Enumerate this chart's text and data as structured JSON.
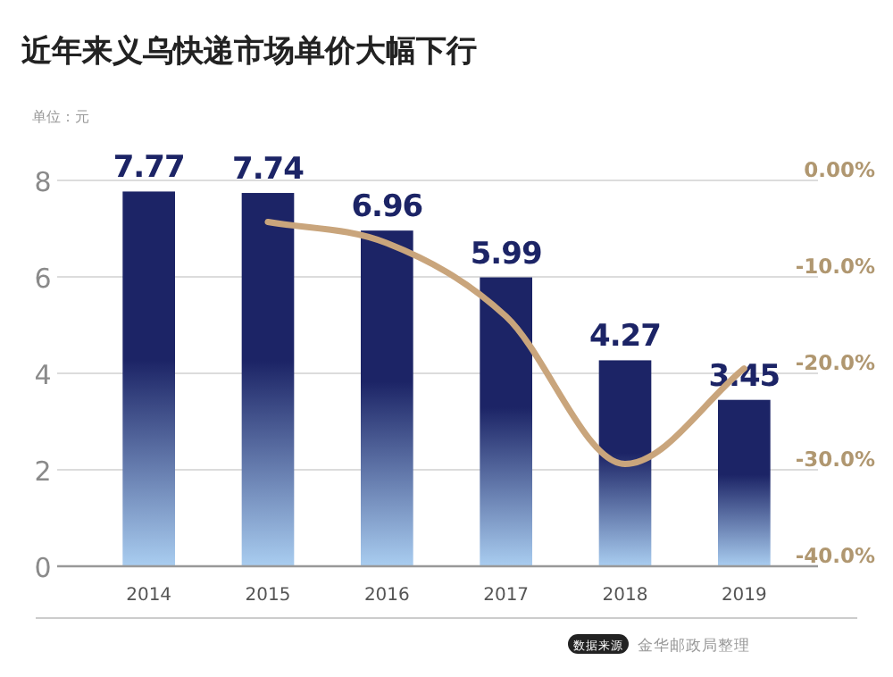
{
  "chart_data": {
    "type": "bar",
    "title": "近年来义乌快递市场单价大幅下行",
    "annotations": [
      "单位：元",
      "数据来源",
      "金华邮政局整理"
    ],
    "categories": [
      "2014",
      "2015",
      "2016",
      "2017",
      "2018",
      "2019"
    ],
    "series": [
      {
        "color": "#1c2466",
        "values": [
          7.77,
          7.74,
          6.96,
          5.99,
          4.27,
          3.45
        ],
        "value_labels": [
          "7.77",
          "7.74",
          "6.96",
          "5.99",
          "4.27",
          "3.45"
        ]
      },
      {
        "type": "line",
        "axis": "y2",
        "color": "#c9a57c",
        "values": [
          null,
          -4.3,
          -6.5,
          -14.1,
          -29.4,
          -19.5
        ]
      }
    ],
    "ylim": [
      0,
      8
    ],
    "yticks": [
      0,
      2,
      4,
      6,
      8
    ],
    "y2lim": [
      -40,
      0
    ],
    "y2ticks": [
      {
        "value": 0,
        "label": "0.00%"
      },
      {
        "value": -10,
        "label": "-10.0%"
      },
      {
        "value": -20,
        "label": "-20.0%"
      },
      {
        "value": -30,
        "label": "-30.0%"
      },
      {
        "value": -40,
        "label": "-40.0%"
      }
    ],
    "grid": "y",
    "marker": "none",
    "line_style": "solid"
  }
}
